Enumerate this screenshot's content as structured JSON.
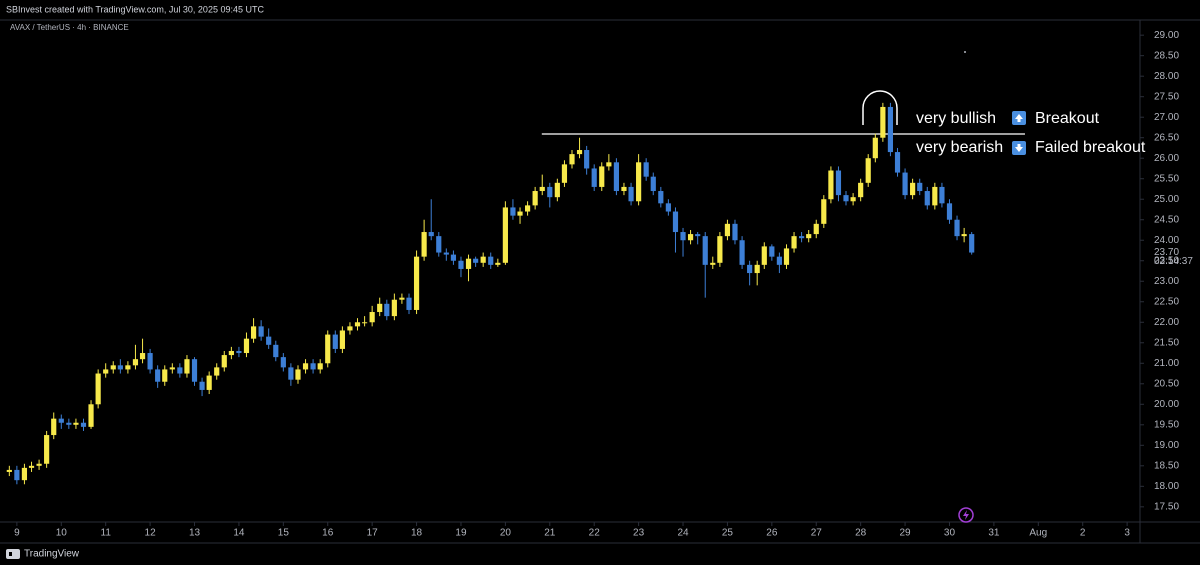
{
  "header": "SBInvest created with TradingView.com, Jul 30, 2025 09:45 UTC",
  "footer": "TradingView",
  "chart_data": {
    "type": "candlestick",
    "title": "AVAX / TetherUS · 4h · BINANCE",
    "up_color": "#f7e94b",
    "down_color": "#3d7fd6",
    "xlim": [
      8.62,
      34.29
    ],
    "ylim": [
      17.13,
      29.37
    ],
    "xticks": [
      9,
      10,
      11,
      12,
      13,
      14,
      15,
      16,
      17,
      18,
      19,
      20,
      21,
      22,
      23,
      24,
      25,
      26,
      27,
      28,
      29,
      30,
      31,
      {
        "value": 32,
        "label": "Aug"
      },
      {
        "value": 33,
        "label": "2"
      },
      {
        "value": 34,
        "label": "3"
      }
    ],
    "yticks": [
      {
        "value": 17.5,
        "label": "17.50"
      },
      {
        "value": 18,
        "label": "18.00"
      },
      {
        "value": 18.5,
        "label": "18.50"
      },
      {
        "value": 19,
        "label": "19.00"
      },
      {
        "value": 19.5,
        "label": "19.50"
      },
      {
        "value": 20,
        "label": "20.00"
      },
      {
        "value": 20.5,
        "label": "20.50"
      },
      {
        "value": 21,
        "label": "21.00"
      },
      {
        "value": 21.5,
        "label": "21.50"
      },
      {
        "value": 22,
        "label": "22.00"
      },
      {
        "value": 22.5,
        "label": "22.50"
      },
      {
        "value": 23,
        "label": "23.00"
      },
      {
        "value": 23.5,
        "label": "23.50"
      },
      {
        "value": 24,
        "label": "24.00"
      },
      {
        "value": 24.5,
        "label": "24.50"
      },
      {
        "value": 25,
        "label": "25.00"
      },
      {
        "value": 25.5,
        "label": "25.50"
      },
      {
        "value": 26,
        "label": "26.00"
      },
      {
        "value": 26.5,
        "label": "26.50"
      },
      {
        "value": 27,
        "label": "27.00"
      },
      {
        "value": 27.5,
        "label": "27.50"
      },
      {
        "value": 28,
        "label": "28.00"
      },
      {
        "value": 28.5,
        "label": "28.50"
      },
      {
        "value": 29,
        "label": "29.00"
      }
    ],
    "price_tag": {
      "value": 23.7,
      "label": "23.70"
    },
    "countdown": "02:14:37",
    "level_line": {
      "value": 26.59,
      "x": [
        20.82,
        31.7
      ]
    },
    "annotations": [
      {
        "label": "very bullish",
        "tag": "Breakout"
      },
      {
        "label": "very bearish",
        "tag": "Failed breakout"
      }
    ],
    "x": [
      8.83,
      9,
      9.17,
      9.33,
      9.5,
      9.67,
      9.83,
      10,
      10.17,
      10.33,
      10.5,
      10.67,
      10.83,
      11,
      11.17,
      11.33,
      11.5,
      11.67,
      11.83,
      12,
      12.17,
      12.33,
      12.5,
      12.67,
      12.83,
      13,
      13.17,
      13.33,
      13.5,
      13.67,
      13.83,
      14,
      14.17,
      14.33,
      14.5,
      14.67,
      14.83,
      15,
      15.17,
      15.33,
      15.5,
      15.67,
      15.83,
      16,
      16.17,
      16.33,
      16.5,
      16.67,
      16.83,
      17,
      17.17,
      17.33,
      17.5,
      17.67,
      17.83,
      18,
      18.17,
      18.33,
      18.5,
      18.67,
      18.83,
      19,
      19.17,
      19.33,
      19.5,
      19.67,
      19.83,
      20,
      20.17,
      20.33,
      20.5,
      20.67,
      20.83,
      21,
      21.17,
      21.33,
      21.5,
      21.67,
      21.83,
      22,
      22.17,
      22.33,
      22.5,
      22.67,
      22.83,
      23,
      23.17,
      23.33,
      23.5,
      23.67,
      23.83,
      24,
      24.17,
      24.33,
      24.5,
      24.67,
      24.83,
      25,
      25.17,
      25.33,
      25.5,
      25.67,
      25.83,
      26,
      26.17,
      26.33,
      26.5,
      26.67,
      26.83,
      27,
      27.17,
      27.33,
      27.5,
      27.67,
      27.83,
      28,
      28.17,
      28.33,
      28.5,
      28.67,
      28.83,
      29,
      29.17,
      29.33,
      29.5,
      29.67,
      29.83,
      30,
      30.17,
      30.33,
      30.5
    ],
    "candles": [
      [
        18.35,
        18.5,
        18.25,
        18.4
      ],
      [
        18.4,
        18.5,
        18.05,
        18.15
      ],
      [
        18.15,
        18.55,
        18.05,
        18.45
      ],
      [
        18.45,
        18.6,
        18.35,
        18.5
      ],
      [
        18.5,
        18.65,
        18.4,
        18.55
      ],
      [
        18.55,
        19.35,
        18.45,
        19.25
      ],
      [
        19.25,
        19.8,
        19.15,
        19.65
      ],
      [
        19.65,
        19.75,
        19.4,
        19.55
      ],
      [
        19.55,
        19.65,
        19.4,
        19.5
      ],
      [
        19.5,
        19.65,
        19.4,
        19.55
      ],
      [
        19.55,
        19.65,
        19.35,
        19.45
      ],
      [
        19.45,
        20.1,
        19.4,
        20.0
      ],
      [
        20.0,
        20.85,
        19.9,
        20.75
      ],
      [
        20.75,
        21.0,
        20.65,
        20.85
      ],
      [
        20.85,
        21.05,
        20.75,
        20.95
      ],
      [
        20.95,
        21.1,
        20.75,
        20.85
      ],
      [
        20.85,
        21.05,
        20.75,
        20.95
      ],
      [
        20.95,
        21.45,
        20.85,
        21.1
      ],
      [
        21.1,
        21.6,
        21.0,
        21.25
      ],
      [
        21.25,
        21.35,
        20.75,
        20.85
      ],
      [
        20.85,
        20.95,
        20.4,
        20.55
      ],
      [
        20.55,
        20.95,
        20.45,
        20.85
      ],
      [
        20.85,
        21.0,
        20.75,
        20.9
      ],
      [
        20.9,
        21.0,
        20.65,
        20.75
      ],
      [
        20.75,
        21.2,
        20.65,
        21.1
      ],
      [
        21.1,
        21.15,
        20.45,
        20.55
      ],
      [
        20.55,
        20.65,
        20.2,
        20.35
      ],
      [
        20.35,
        20.8,
        20.25,
        20.7
      ],
      [
        20.7,
        21.0,
        20.6,
        20.9
      ],
      [
        20.9,
        21.3,
        20.8,
        21.2
      ],
      [
        21.2,
        21.4,
        21.1,
        21.3
      ],
      [
        21.3,
        21.4,
        21.15,
        21.25
      ],
      [
        21.25,
        21.75,
        21.15,
        21.6
      ],
      [
        21.6,
        22.1,
        21.5,
        21.9
      ],
      [
        21.9,
        22.05,
        21.55,
        21.65
      ],
      [
        21.65,
        21.85,
        21.35,
        21.45
      ],
      [
        21.45,
        21.55,
        21.05,
        21.15
      ],
      [
        21.15,
        21.25,
        20.8,
        20.9
      ],
      [
        20.9,
        21.0,
        20.45,
        20.6
      ],
      [
        20.6,
        20.95,
        20.5,
        20.85
      ],
      [
        20.85,
        21.1,
        20.75,
        21.0
      ],
      [
        21.0,
        21.1,
        20.75,
        20.85
      ],
      [
        20.85,
        21.1,
        20.75,
        21.0
      ],
      [
        21.0,
        21.8,
        20.9,
        21.7
      ],
      [
        21.7,
        21.8,
        21.25,
        21.35
      ],
      [
        21.35,
        21.9,
        21.25,
        21.8
      ],
      [
        21.8,
        22.0,
        21.7,
        21.9
      ],
      [
        21.9,
        22.1,
        21.8,
        22.0
      ],
      [
        22.0,
        22.15,
        21.9,
        22.0
      ],
      [
        22.0,
        22.4,
        21.9,
        22.25
      ],
      [
        22.25,
        22.6,
        22.15,
        22.45
      ],
      [
        22.45,
        22.55,
        22.05,
        22.15
      ],
      [
        22.15,
        22.7,
        22.05,
        22.55
      ],
      [
        22.55,
        22.7,
        22.45,
        22.6
      ],
      [
        22.6,
        22.7,
        22.2,
        22.3
      ],
      [
        22.3,
        23.75,
        22.2,
        23.6
      ],
      [
        23.6,
        24.5,
        23.5,
        24.2
      ],
      [
        24.2,
        25.0,
        24.0,
        24.1
      ],
      [
        24.1,
        24.2,
        23.6,
        23.7
      ],
      [
        23.7,
        23.8,
        23.5,
        23.65
      ],
      [
        23.65,
        23.75,
        23.4,
        23.5
      ],
      [
        23.5,
        23.6,
        23.1,
        23.3
      ],
      [
        23.3,
        23.65,
        23.0,
        23.55
      ],
      [
        23.55,
        23.6,
        23.35,
        23.45
      ],
      [
        23.45,
        23.7,
        23.35,
        23.6
      ],
      [
        23.6,
        23.7,
        23.3,
        23.4
      ],
      [
        23.4,
        23.55,
        23.35,
        23.45
      ],
      [
        23.45,
        24.95,
        23.4,
        24.8
      ],
      [
        24.8,
        25.0,
        24.5,
        24.6
      ],
      [
        24.6,
        24.8,
        24.4,
        24.7
      ],
      [
        24.7,
        24.95,
        24.6,
        24.85
      ],
      [
        24.85,
        25.3,
        24.75,
        25.2
      ],
      [
        25.2,
        25.6,
        25.1,
        25.3
      ],
      [
        25.3,
        25.4,
        24.8,
        25.05
      ],
      [
        25.05,
        25.5,
        24.95,
        25.4
      ],
      [
        25.4,
        25.95,
        25.3,
        25.85
      ],
      [
        25.85,
        26.2,
        25.75,
        26.1
      ],
      [
        26.1,
        26.5,
        26.0,
        26.2
      ],
      [
        26.2,
        26.3,
        25.6,
        25.75
      ],
      [
        25.75,
        25.85,
        25.2,
        25.3
      ],
      [
        25.3,
        25.9,
        25.2,
        25.8
      ],
      [
        25.8,
        26.1,
        25.7,
        25.9
      ],
      [
        25.9,
        26.0,
        25.1,
        25.2
      ],
      [
        25.2,
        25.4,
        25.1,
        25.3
      ],
      [
        25.3,
        25.4,
        24.85,
        24.95
      ],
      [
        24.95,
        26.1,
        24.85,
        25.9
      ],
      [
        25.9,
        26.0,
        25.45,
        25.55
      ],
      [
        25.55,
        25.65,
        25.1,
        25.2
      ],
      [
        25.2,
        25.3,
        24.8,
        24.9
      ],
      [
        24.9,
        25.0,
        24.6,
        24.7
      ],
      [
        24.7,
        24.8,
        23.7,
        24.2
      ],
      [
        24.2,
        24.3,
        23.6,
        24.0
      ],
      [
        24.0,
        24.25,
        23.9,
        24.15
      ],
      [
        24.15,
        24.2,
        23.9,
        24.1
      ],
      [
        24.1,
        24.2,
        22.6,
        23.4
      ],
      [
        23.4,
        23.6,
        23.3,
        23.45
      ],
      [
        23.45,
        24.2,
        23.35,
        24.1
      ],
      [
        24.1,
        24.5,
        24.0,
        24.4
      ],
      [
        24.4,
        24.5,
        23.9,
        24.0
      ],
      [
        24.0,
        24.1,
        23.3,
        23.4
      ],
      [
        23.4,
        23.5,
        22.9,
        23.2
      ],
      [
        23.2,
        23.5,
        22.9,
        23.4
      ],
      [
        23.4,
        23.95,
        23.3,
        23.85
      ],
      [
        23.85,
        23.9,
        23.5,
        23.6
      ],
      [
        23.6,
        23.7,
        23.2,
        23.4
      ],
      [
        23.4,
        23.9,
        23.3,
        23.8
      ],
      [
        23.8,
        24.2,
        23.7,
        24.1
      ],
      [
        24.1,
        24.2,
        23.95,
        24.05
      ],
      [
        24.05,
        24.25,
        23.95,
        24.15
      ],
      [
        24.15,
        24.5,
        24.05,
        24.4
      ],
      [
        24.4,
        25.1,
        24.3,
        25.0
      ],
      [
        25.0,
        25.8,
        24.9,
        25.7
      ],
      [
        25.7,
        25.8,
        24.95,
        25.1
      ],
      [
        25.1,
        25.2,
        24.85,
        24.95
      ],
      [
        24.95,
        25.15,
        24.85,
        25.05
      ],
      [
        25.05,
        25.5,
        24.95,
        25.4
      ],
      [
        25.4,
        26.1,
        25.3,
        26.0
      ],
      [
        26.0,
        26.6,
        25.9,
        26.5
      ],
      [
        26.5,
        27.35,
        26.4,
        27.25
      ],
      [
        27.25,
        27.35,
        26.05,
        26.15
      ],
      [
        26.15,
        26.25,
        25.55,
        25.65
      ],
      [
        25.65,
        25.75,
        25.0,
        25.1
      ],
      [
        25.1,
        25.5,
        25.0,
        25.4
      ],
      [
        25.4,
        25.5,
        25.1,
        25.2
      ],
      [
        25.2,
        25.3,
        24.75,
        24.85
      ],
      [
        24.85,
        25.4,
        24.75,
        25.3
      ],
      [
        25.3,
        25.4,
        24.8,
        24.9
      ],
      [
        24.9,
        25.0,
        24.4,
        24.5
      ],
      [
        24.5,
        24.6,
        24.0,
        24.1
      ],
      [
        24.1,
        24.3,
        23.95,
        24.15
      ],
      [
        24.15,
        24.2,
        23.65,
        23.7
      ]
    ]
  }
}
